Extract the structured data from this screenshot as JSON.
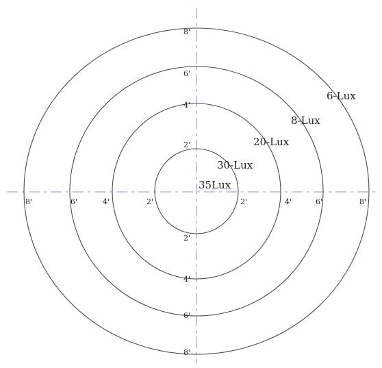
{
  "rings": [
    {
      "id": "ring-2",
      "radius_ft": 2
    },
    {
      "id": "ring-4",
      "radius_ft": 4
    },
    {
      "id": "ring-6",
      "radius_ft": 6
    },
    {
      "id": "ring-8",
      "radius_ft": 8
    }
  ],
  "axis_labels": {
    "top": [
      "8'",
      "6'",
      "4'",
      "2'"
    ],
    "bottom": [
      "2'",
      "4'",
      "6'",
      "8'"
    ],
    "left": [
      "8'",
      "6'",
      "4'",
      "2'"
    ],
    "right": [
      "2'",
      "4'",
      "6'",
      "8'"
    ]
  },
  "lux_labels": {
    "center": "35Lux",
    "ring_2": "30-Lux",
    "ring_4": "20-Lux",
    "ring_6": "8-Lux",
    "ring_8": "6-Lux"
  },
  "colors": {
    "ring_stroke": "#4a4a4a",
    "axis_stroke": "#a8abd0",
    "text": "#1f1f1f",
    "background": "#ffffff"
  }
}
